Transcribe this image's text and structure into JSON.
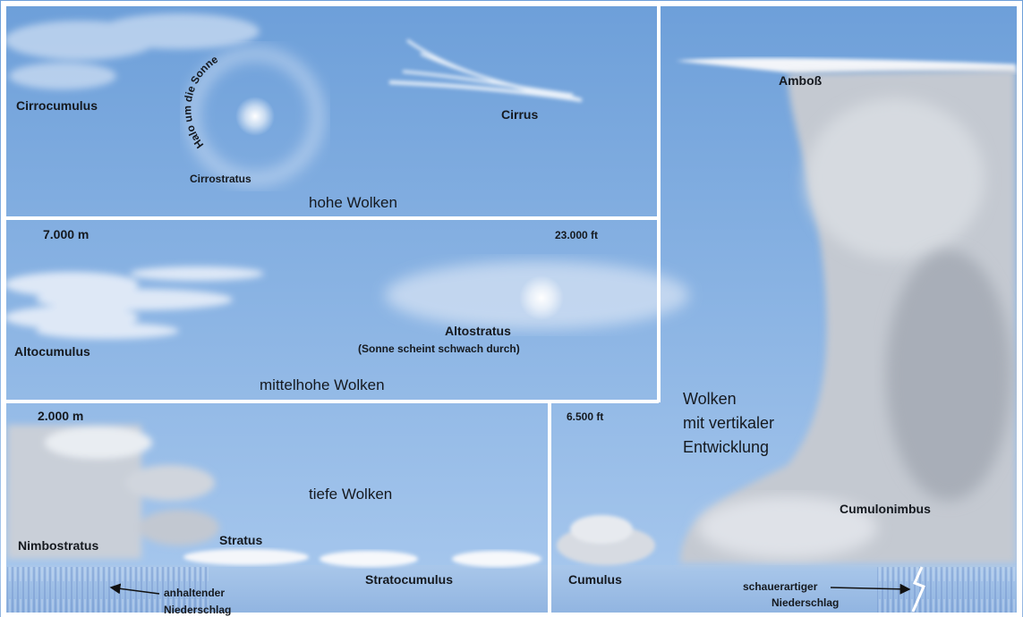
{
  "high": {
    "title": "hohe Wolken",
    "cirrocumulus": "Cirrocumulus",
    "halo": "Halo um die Sonne",
    "cirrus": "Cirrus",
    "cirrostratus": "Cirrostratus"
  },
  "middle": {
    "title": "mittelhohe Wolken",
    "altitude_m": "7.000 m",
    "altitude_ft": "23.000 ft",
    "altostratus": "Altostratus",
    "altostratus_note": "(Sonne scheint schwach durch)",
    "altocumulus": "Altocumulus"
  },
  "low": {
    "title": "tiefe Wolken",
    "altitude_m": "2.000 m",
    "altitude_ft": "6.500 ft",
    "nimbostratus": "Nimbostratus",
    "stratus": "Stratus",
    "stratocumulus": "Stratocumulus",
    "precip": [
      "anhaltender",
      "Niederschlag"
    ]
  },
  "vertical": {
    "title": [
      "Wolken",
      "mit vertikaler",
      "Entwicklung"
    ],
    "cumulus": "Cumulus",
    "anvil": "Amboß",
    "cumulonimbus": "Cumulonimbus",
    "precip": [
      "schauerartiger",
      "Niederschlag"
    ]
  }
}
